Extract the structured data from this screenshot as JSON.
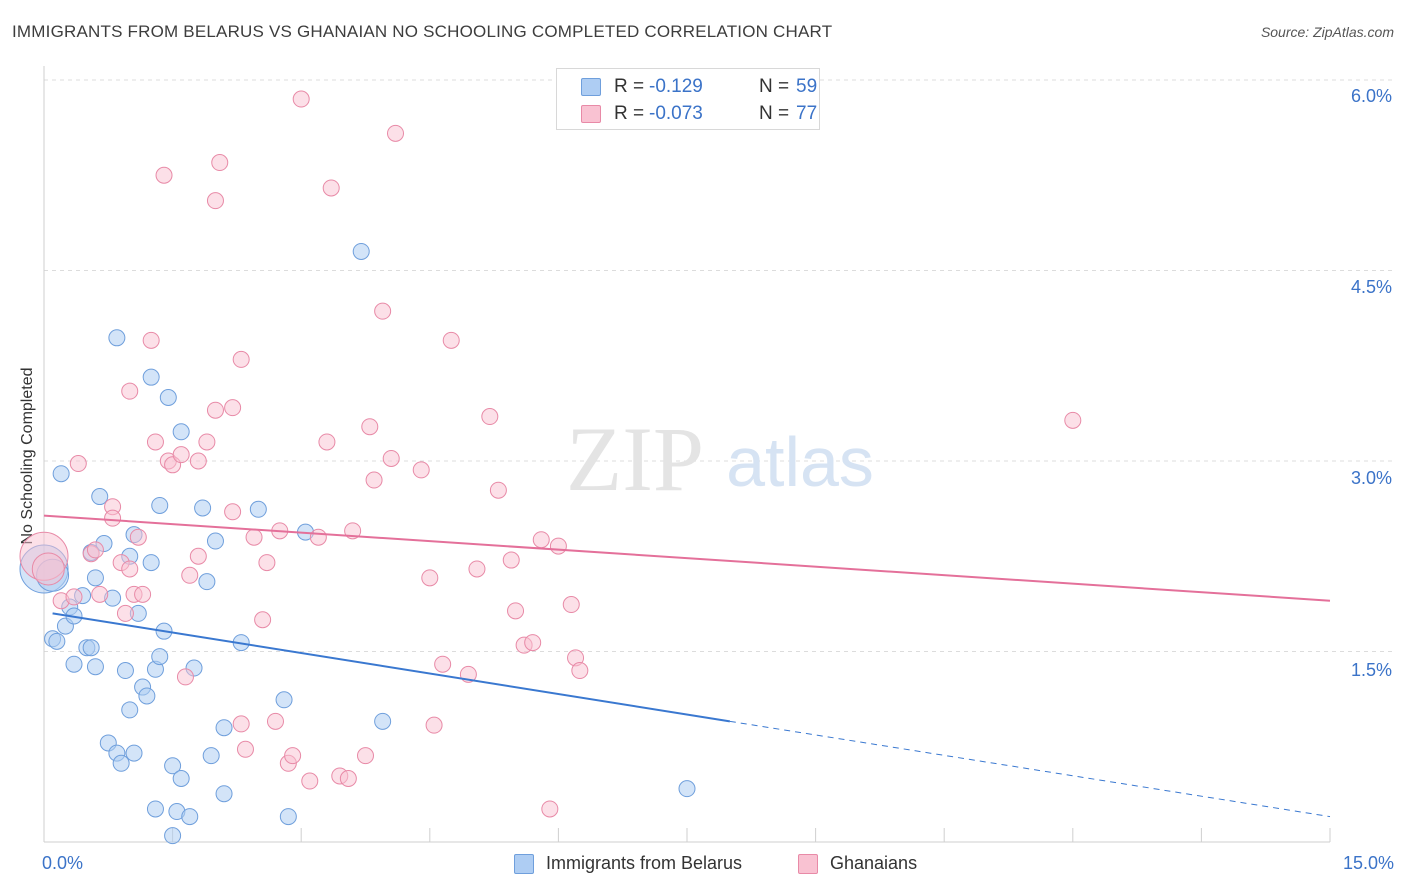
{
  "title": "IMMIGRANTS FROM BELARUS VS GHANAIAN NO SCHOOLING COMPLETED CORRELATION CHART",
  "source": "Source: ZipAtlas.com",
  "watermark": {
    "zip": "ZIP",
    "atlas": "atlas"
  },
  "stats": {
    "r_label": "R =",
    "n_label": "N =",
    "rows": [
      {
        "r": "-0.129",
        "n": "59",
        "color": "#aecdf3",
        "border": "#6f9fdc"
      },
      {
        "r": "-0.073",
        "n": "77",
        "color": "#f9c2d2",
        "border": "#e88aa7"
      }
    ]
  },
  "legend": [
    {
      "label": "Immigrants from Belarus",
      "color": "#aecdf3",
      "border": "#6f9fdc"
    },
    {
      "label": "Ghanaians",
      "color": "#f9c2d2",
      "border": "#e88aa7"
    }
  ],
  "colors": {
    "blue": "#3a78d0",
    "pink": "#e4709a",
    "tick": "#3b73c8"
  },
  "chart_data": {
    "type": "scatter",
    "title": "IMMIGRANTS FROM BELARUS VS GHANAIAN NO SCHOOLING COMPLETED CORRELATION CHART",
    "xlabel": "",
    "ylabel": "No Schooling Completed",
    "xlim": [
      0,
      15
    ],
    "ylim": [
      0,
      6.2
    ],
    "x_tick_labels": [
      "0.0%",
      "15.0%"
    ],
    "y_ticks": [
      1.5,
      3.0,
      4.5,
      6.0
    ],
    "y_tick_labels": [
      "1.5%",
      "3.0%",
      "4.5%",
      "6.0%"
    ],
    "grid": true,
    "series": [
      {
        "name": "Immigrants from Belarus",
        "r": -0.129,
        "n": 59,
        "trend": {
          "x0": 0.1,
          "y0": 1.8,
          "x1": 8.0,
          "y1": 0.95,
          "dash_to_x": 15.0,
          "dash_to_y": 0.2
        },
        "points": [
          [
            0.0,
            2.15,
            3
          ],
          [
            0.1,
            2.1,
            2
          ],
          [
            0.2,
            2.9,
            1
          ],
          [
            0.1,
            1.6,
            1
          ],
          [
            0.15,
            1.58,
            1
          ],
          [
            0.25,
            1.7,
            1
          ],
          [
            0.3,
            1.85,
            1
          ],
          [
            0.35,
            1.78,
            1
          ],
          [
            0.45,
            1.94,
            1
          ],
          [
            0.35,
            1.4,
            1
          ],
          [
            0.5,
            1.53,
            1
          ],
          [
            0.55,
            1.53,
            1
          ],
          [
            0.6,
            1.38,
            1
          ],
          [
            0.55,
            2.28,
            1
          ],
          [
            0.6,
            2.08,
            1
          ],
          [
            0.65,
            2.72,
            1
          ],
          [
            0.7,
            2.35,
            1
          ],
          [
            0.75,
            0.78,
            1
          ],
          [
            0.8,
            1.92,
            1
          ],
          [
            0.85,
            0.7,
            1
          ],
          [
            0.9,
            0.62,
            1
          ],
          [
            0.85,
            3.97,
            1
          ],
          [
            0.95,
            1.35,
            1
          ],
          [
            1.0,
            2.25,
            1
          ],
          [
            1.0,
            1.04,
            1
          ],
          [
            1.05,
            0.7,
            1
          ],
          [
            1.05,
            2.42,
            1
          ],
          [
            1.1,
            1.8,
            1
          ],
          [
            1.15,
            1.22,
            1
          ],
          [
            1.2,
            1.15,
            1
          ],
          [
            1.25,
            2.2,
            1
          ],
          [
            1.3,
            1.36,
            1
          ],
          [
            1.35,
            1.46,
            1
          ],
          [
            1.3,
            0.26,
            1
          ],
          [
            1.25,
            3.66,
            1
          ],
          [
            1.35,
            2.65,
            1
          ],
          [
            1.4,
            1.66,
            1
          ],
          [
            1.45,
            3.5,
            1
          ],
          [
            1.5,
            0.6,
            1
          ],
          [
            1.55,
            0.24,
            1
          ],
          [
            1.6,
            0.5,
            1
          ],
          [
            1.6,
            3.23,
            1
          ],
          [
            1.7,
            0.2,
            1
          ],
          [
            1.75,
            1.37,
            1
          ],
          [
            1.85,
            2.63,
            1
          ],
          [
            1.9,
            2.05,
            1
          ],
          [
            1.95,
            0.68,
            1
          ],
          [
            2.0,
            2.37,
            1
          ],
          [
            2.1,
            0.9,
            1
          ],
          [
            2.1,
            0.38,
            1
          ],
          [
            2.3,
            1.57,
            1
          ],
          [
            2.5,
            2.62,
            1
          ],
          [
            2.8,
            1.12,
            1
          ],
          [
            2.85,
            0.2,
            1
          ],
          [
            3.05,
            2.44,
            1
          ],
          [
            3.7,
            4.65,
            1
          ],
          [
            3.95,
            0.95,
            1
          ],
          [
            7.5,
            0.42,
            1
          ],
          [
            1.5,
            0.05,
            1
          ]
        ]
      },
      {
        "name": "Ghanaians",
        "r": -0.073,
        "n": 77,
        "trend": {
          "x0": 0.0,
          "y0": 2.57,
          "x1": 15.0,
          "y1": 1.9
        },
        "points": [
          [
            0.0,
            2.25,
            3
          ],
          [
            0.05,
            2.15,
            2
          ],
          [
            0.2,
            1.9,
            1
          ],
          [
            0.35,
            1.93,
            1
          ],
          [
            0.4,
            2.98,
            1
          ],
          [
            0.55,
            2.27,
            1
          ],
          [
            0.6,
            2.3,
            1
          ],
          [
            0.65,
            1.95,
            1
          ],
          [
            0.8,
            2.64,
            1
          ],
          [
            0.8,
            2.55,
            1
          ],
          [
            0.9,
            2.2,
            1
          ],
          [
            0.95,
            1.8,
            1
          ],
          [
            1.0,
            2.15,
            1
          ],
          [
            1.0,
            3.55,
            1
          ],
          [
            1.05,
            1.95,
            1
          ],
          [
            1.1,
            2.4,
            1
          ],
          [
            1.15,
            1.95,
            1
          ],
          [
            1.25,
            3.95,
            1
          ],
          [
            1.3,
            3.15,
            1
          ],
          [
            1.4,
            5.25,
            1
          ],
          [
            1.45,
            3.0,
            1
          ],
          [
            1.5,
            2.97,
            1
          ],
          [
            1.6,
            3.05,
            1
          ],
          [
            1.65,
            1.3,
            1
          ],
          [
            1.7,
            2.1,
            1
          ],
          [
            1.8,
            2.25,
            1
          ],
          [
            1.8,
            3.0,
            1
          ],
          [
            1.9,
            3.15,
            1
          ],
          [
            2.0,
            3.4,
            1
          ],
          [
            2.0,
            5.05,
            1
          ],
          [
            2.05,
            5.35,
            1
          ],
          [
            2.2,
            3.42,
            1
          ],
          [
            2.2,
            2.6,
            1
          ],
          [
            2.3,
            3.8,
            1
          ],
          [
            2.3,
            0.93,
            1
          ],
          [
            2.35,
            0.73,
            1
          ],
          [
            2.45,
            2.4,
            1
          ],
          [
            2.55,
            1.75,
            1
          ],
          [
            2.6,
            2.2,
            1
          ],
          [
            2.7,
            0.95,
            1
          ],
          [
            2.75,
            2.45,
            1
          ],
          [
            2.85,
            0.62,
            1
          ],
          [
            2.9,
            0.68,
            1
          ],
          [
            3.0,
            5.85,
            1
          ],
          [
            3.1,
            0.48,
            1
          ],
          [
            3.2,
            2.4,
            1
          ],
          [
            3.3,
            3.15,
            1
          ],
          [
            3.35,
            5.15,
            1
          ],
          [
            3.45,
            0.52,
            1
          ],
          [
            3.55,
            0.5,
            1
          ],
          [
            3.6,
            2.45,
            1
          ],
          [
            3.75,
            0.68,
            1
          ],
          [
            3.8,
            3.27,
            1
          ],
          [
            3.85,
            2.85,
            1
          ],
          [
            3.95,
            4.18,
            1
          ],
          [
            4.05,
            3.02,
            1
          ],
          [
            4.1,
            5.58,
            1
          ],
          [
            4.4,
            2.93,
            1
          ],
          [
            4.5,
            2.08,
            1
          ],
          [
            4.55,
            0.92,
            1
          ],
          [
            4.75,
            3.95,
            1
          ],
          [
            4.95,
            1.32,
            1
          ],
          [
            5.05,
            2.15,
            1
          ],
          [
            5.2,
            3.35,
            1
          ],
          [
            5.3,
            2.77,
            1
          ],
          [
            5.45,
            2.22,
            1
          ],
          [
            5.5,
            1.82,
            1
          ],
          [
            5.6,
            1.55,
            1
          ],
          [
            5.7,
            1.57,
            1
          ],
          [
            5.8,
            2.38,
            1
          ],
          [
            5.9,
            0.26,
            1
          ],
          [
            6.0,
            2.33,
            1
          ],
          [
            6.15,
            1.87,
            1
          ],
          [
            6.2,
            1.45,
            1
          ],
          [
            6.25,
            1.35,
            1
          ],
          [
            12.0,
            3.32,
            1
          ],
          [
            4.65,
            1.4,
            1
          ]
        ]
      }
    ]
  }
}
